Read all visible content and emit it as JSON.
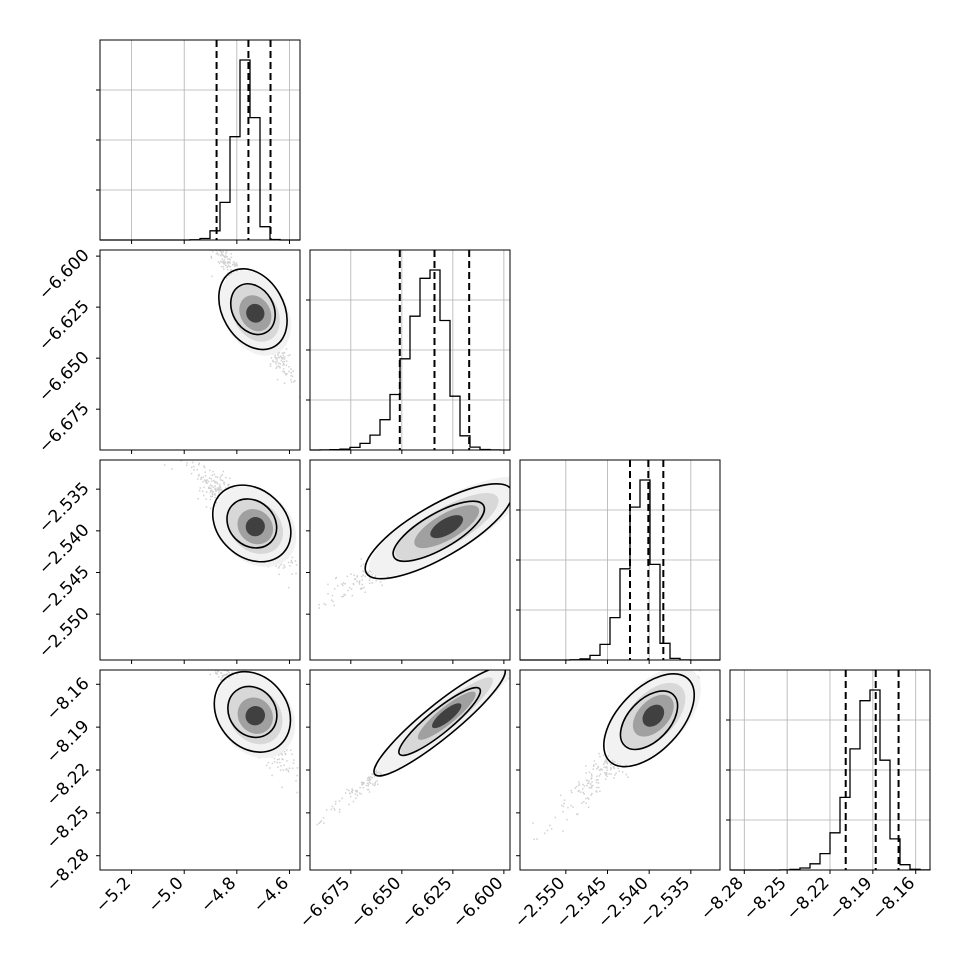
{
  "chart_data": {
    "type": "corner",
    "params": [
      {
        "range": [
          -5.32,
          -4.56
        ],
        "ticks": [
          -5.2,
          -5.0,
          -4.8,
          -4.6
        ],
        "labels": [
          "−5.2",
          "−5.0",
          "−4.8",
          "−4.6"
        ],
        "mean": -4.73,
        "sd": 0.06,
        "skew": -1,
        "quantiles": [
          -4.877,
          -4.756,
          -4.672
        ]
      },
      {
        "range": [
          -6.695,
          -6.597
        ],
        "ticks": [
          -6.675,
          -6.65,
          -6.625,
          -6.6
        ],
        "labels": [
          "−6.675",
          "−6.650",
          "−6.625",
          "−6.600"
        ],
        "mean": -6.628,
        "sd": 0.015,
        "skew": -1,
        "quantiles": [
          -6.651,
          -6.634,
          -6.617
        ]
      },
      {
        "range": [
          -2.5555,
          -2.5315
        ],
        "ticks": [
          -2.55,
          -2.545,
          -2.54,
          -2.535
        ],
        "labels": [
          "−2.550",
          "−2.545",
          "−2.540",
          "−2.535"
        ],
        "mean": -2.5395,
        "sd": 0.0025,
        "skew": -1,
        "quantiles": [
          -2.5423,
          -2.5401,
          -2.5383
        ]
      },
      {
        "range": [
          -8.29,
          -8.15
        ],
        "ticks": [
          -8.28,
          -8.25,
          -8.22,
          -8.19,
          -8.16
        ],
        "labels": [
          "−8.28",
          "−8.25",
          "−8.22",
          "−8.19",
          "−8.16"
        ],
        "mean": -8.182,
        "sd": 0.018,
        "skew": -1,
        "quantiles": [
          -8.209,
          -8.188,
          -8.172
        ]
      }
    ],
    "y_tick_labels": {
      "1": [
        "−6.600",
        "−6.625",
        "−6.650",
        "−6.675"
      ],
      "2": [
        "−2.535",
        "−2.540",
        "−2.545",
        "−2.550"
      ],
      "3": [
        "−8.16",
        "−8.19",
        "−8.22",
        "−8.25",
        "−8.28"
      ]
    },
    "density_peak_hist_scale": 1.0,
    "contour_levels": [
      0.39,
      0.86
    ],
    "correlations": {
      "0-1": -0.9,
      "0-2": -0.7,
      "1-2": 0.85,
      "0-3": -0.8,
      "1-3": 0.97,
      "2-3": 0.85
    },
    "grid": true
  }
}
